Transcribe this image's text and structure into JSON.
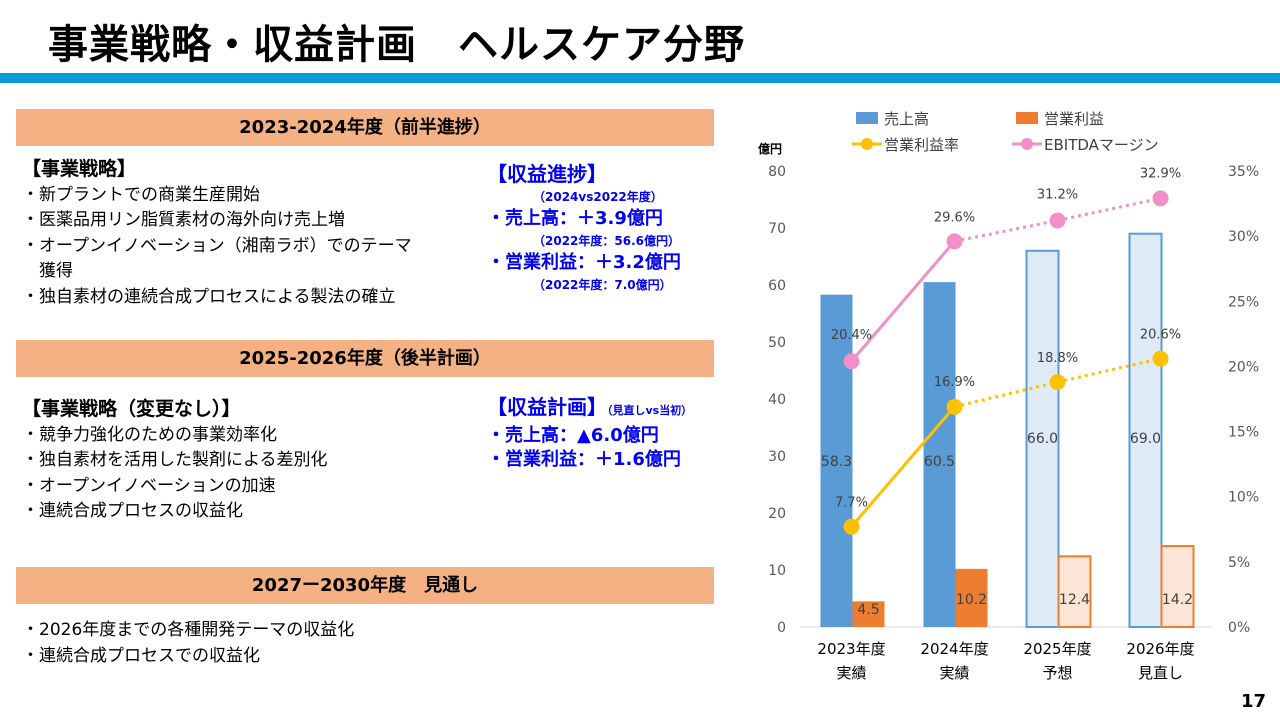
{
  "page": {
    "title": "事業戦略・収益計画　ヘルスケア分野",
    "page_number": "17"
  },
  "sections": {
    "first": {
      "band": "2023-2024年度（前半進捗）",
      "strategy_heading": "【事業戦略】",
      "strategy_items": [
        "・新プラントでの商業生産開始",
        "・医薬品用リン脂質素材の海外向け売上増",
        "・オープンイノベーション（湘南ラボ）でのテーマ",
        "　獲得",
        "・独自素材の連続合成プロセスによる製法の確立"
      ],
      "progress_heading": "【収益進捗】",
      "progress_compare": "（2024vs2022年度）",
      "progress_sales": "・売上高：＋3.9億円",
      "progress_sales_note": "（2022年度：56.6億円）",
      "progress_profit": "・営業利益：＋3.2億円",
      "progress_profit_note": "（2022年度：7.0億円）"
    },
    "second": {
      "band": "2025-2026年度（後半計画）",
      "strategy_heading": "【事業戦略（変更なし）】",
      "strategy_items": [
        "・競争力強化のための事業効率化",
        "・独自素材を活用した製剤による差別化",
        "・オープンイノベーションの加速",
        "・連続合成プロセスの収益化"
      ],
      "plan_heading": "【収益計画】",
      "plan_note": "（見直しvs当初）",
      "plan_sales": "・売上高：▲6.0億円",
      "plan_profit": "・営業利益：＋1.6億円"
    },
    "third": {
      "band": "2027ー2030年度　見通し",
      "items": [
        "・2026年度までの各種開発テーマの収益化",
        "・連続合成プロセスでの収益化"
      ]
    }
  },
  "chart_data": {
    "type": "bar",
    "categories": [
      [
        "2023年度",
        "実績"
      ],
      [
        "2024年度",
        "実績"
      ],
      [
        "2025年度",
        "予想"
      ],
      [
        "2026年度",
        "見直し"
      ]
    ],
    "ylabel": "億円",
    "ylim": [
      0,
      80
    ],
    "yticks": [
      0,
      10,
      20,
      30,
      40,
      50,
      60,
      70,
      80
    ],
    "y2lim": [
      0,
      35
    ],
    "y2ticks": [
      "0%",
      "5%",
      "10%",
      "15%",
      "20%",
      "25%",
      "30%",
      "35%"
    ],
    "legend": [
      "売上高",
      "営業利益",
      "営業利益率",
      "EBITDAマージン"
    ],
    "series": [
      {
        "name": "売上高",
        "type": "bar",
        "axis": "left",
        "values": [
          58.3,
          60.5,
          66.0,
          69.0
        ],
        "labels": [
          "58.3",
          "60.5",
          "66.0",
          "69.0"
        ],
        "color": "#5b9bd5",
        "forecast_color": "#deebf7"
      },
      {
        "name": "営業利益",
        "type": "bar",
        "axis": "left",
        "values": [
          4.5,
          10.2,
          12.4,
          14.2
        ],
        "labels": [
          "4.5",
          "10.2",
          "12.4",
          "14.2"
        ],
        "color": "#ed7d31",
        "forecast_color": "#fbe5d6"
      },
      {
        "name": "営業利益率",
        "type": "line",
        "axis": "right",
        "values": [
          7.7,
          16.9,
          18.8,
          20.6
        ],
        "labels": [
          "7.7%",
          "16.9%",
          "18.8%",
          "20.6%"
        ],
        "color": "#ffc000"
      },
      {
        "name": "EBITDAマージン",
        "type": "line",
        "axis": "right",
        "values": [
          20.4,
          29.6,
          31.2,
          32.9
        ],
        "labels": [
          "20.4%",
          "29.6%",
          "31.2%",
          "32.9%"
        ],
        "color": "#f08fc8"
      }
    ],
    "grid": false,
    "legend_position": "top"
  }
}
